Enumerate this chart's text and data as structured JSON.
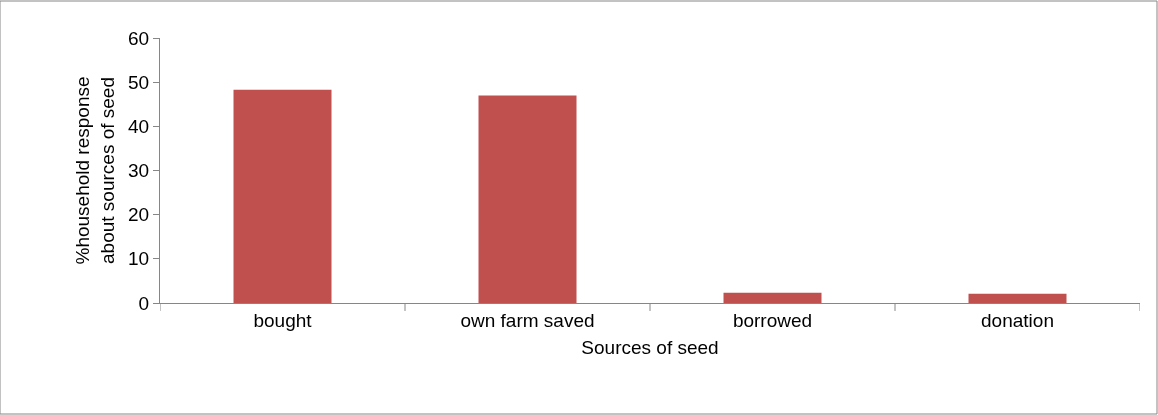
{
  "chart_data": {
    "type": "bar",
    "xlabel": "Sources of seed",
    "ylabel": "%household response about sources of seed",
    "categories": [
      "bought",
      "own farm saved",
      "borrowed",
      "donation"
    ],
    "values": [
      48.3,
      47.0,
      2.3,
      2.1
    ],
    "color": "#c0504d",
    "ylim": [
      0,
      60
    ],
    "yticks": [
      0,
      10,
      20,
      30,
      40,
      50,
      60
    ]
  }
}
